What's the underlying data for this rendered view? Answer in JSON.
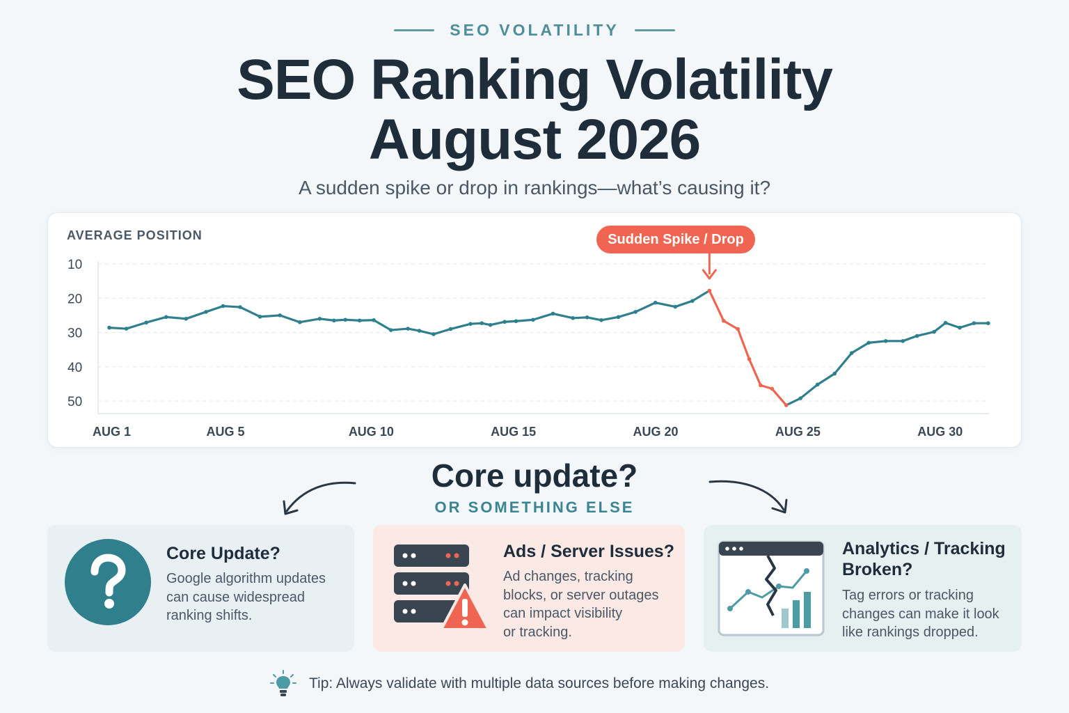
{
  "header": {
    "eyebrow": "SEO VOLATILITY",
    "title_line1": "SEO Ranking Volatility",
    "title_line2": "August 2026",
    "subtitle": "A sudden spike or drop in rankings—what’s causing it?"
  },
  "chart_data": {
    "type": "line",
    "ylabel": "AVERAGE POSITION",
    "y_inverted": false,
    "ylim": [
      10,
      50
    ],
    "y_ticks": [
      10,
      20,
      30,
      40,
      50
    ],
    "x_ticks": [
      {
        "day": 1,
        "label": "AUG 1"
      },
      {
        "day": 5,
        "label": "AUG 5"
      },
      {
        "day": 10,
        "label": "AUG 10"
      },
      {
        "day": 15,
        "label": "AUG 15"
      },
      {
        "day": 20,
        "label": "AUG 20"
      },
      {
        "day": 25,
        "label": "AUG 25"
      },
      {
        "day": 30,
        "label": "AUG 30"
      }
    ],
    "xlim": [
      1,
      31
    ],
    "grid": true,
    "annotation": {
      "label": "Sudden Spike / Drop",
      "day": 20
    },
    "colors": {
      "normal": "#2f7f8d",
      "drop": "#ef6551"
    },
    "highlight_range": [
      20,
      24.2
    ],
    "points": [
      {
        "x": 1,
        "y": 28.6
      },
      {
        "x": 1.6,
        "y": 28.9
      },
      {
        "x": 2.3,
        "y": 27.1
      },
      {
        "x": 3,
        "y": 25.5
      },
      {
        "x": 3.7,
        "y": 26.0
      },
      {
        "x": 4.4,
        "y": 24.0
      },
      {
        "x": 5.0,
        "y": 22.3
      },
      {
        "x": 5.6,
        "y": 22.6
      },
      {
        "x": 6.3,
        "y": 25.4
      },
      {
        "x": 7.0,
        "y": 25.0
      },
      {
        "x": 7.7,
        "y": 27.0
      },
      {
        "x": 8.4,
        "y": 26.0
      },
      {
        "x": 8.9,
        "y": 26.5
      },
      {
        "x": 9.3,
        "y": 26.3
      },
      {
        "x": 9.8,
        "y": 26.5
      },
      {
        "x": 10.3,
        "y": 26.4
      },
      {
        "x": 10.9,
        "y": 29.3
      },
      {
        "x": 11.5,
        "y": 28.9
      },
      {
        "x": 11.9,
        "y": 29.5
      },
      {
        "x": 12.4,
        "y": 30.5
      },
      {
        "x": 13.0,
        "y": 29.0
      },
      {
        "x": 13.7,
        "y": 27.5
      },
      {
        "x": 14.1,
        "y": 27.3
      },
      {
        "x": 14.4,
        "y": 27.8
      },
      {
        "x": 14.9,
        "y": 26.9
      },
      {
        "x": 15.3,
        "y": 26.7
      },
      {
        "x": 15.9,
        "y": 26.3
      },
      {
        "x": 16.6,
        "y": 24.5
      },
      {
        "x": 17.3,
        "y": 25.8
      },
      {
        "x": 17.8,
        "y": 25.6
      },
      {
        "x": 18.3,
        "y": 26.4
      },
      {
        "x": 18.9,
        "y": 25.5
      },
      {
        "x": 19.5,
        "y": 24.0
      },
      {
        "x": 20.2,
        "y": 21.3
      },
      {
        "x": 20.9,
        "y": 22.5
      },
      {
        "x": 21.5,
        "y": 20.8
      },
      {
        "x": 22.1,
        "y": 17.8
      },
      {
        "x": 22.6,
        "y": 26.6
      },
      {
        "x": 23.1,
        "y": 29.0
      },
      {
        "x": 23.5,
        "y": 37.8
      },
      {
        "x": 23.9,
        "y": 45.4
      },
      {
        "x": 24.3,
        "y": 46.4
      },
      {
        "x": 24.8,
        "y": 51.2
      },
      {
        "x": 25.3,
        "y": 49.2
      },
      {
        "x": 25.9,
        "y": 45.2
      },
      {
        "x": 26.5,
        "y": 42.0
      },
      {
        "x": 27.1,
        "y": 36.0
      },
      {
        "x": 27.7,
        "y": 33.0
      },
      {
        "x": 28.3,
        "y": 32.5
      },
      {
        "x": 28.9,
        "y": 32.5
      },
      {
        "x": 29.4,
        "y": 31.0
      },
      {
        "x": 30.0,
        "y": 29.8
      },
      {
        "x": 30.4,
        "y": 27.2
      },
      {
        "x": 30.9,
        "y": 28.6
      },
      {
        "x": 31.4,
        "y": 27.3
      },
      {
        "x": 31.9,
        "y": 27.3
      }
    ]
  },
  "prompt": {
    "question": "Core update?",
    "alt": "OR SOMETHING ELSE"
  },
  "cards": [
    {
      "title": "Core Update?",
      "body": [
        "Google algorithm updates",
        "can cause widespread",
        "ranking shifts."
      ],
      "icon": "question-circle-icon",
      "color": "#2f7f8d"
    },
    {
      "title": "Ads / Server Issues?",
      "body": [
        "Ad changes, tracking",
        "blocks, or server outages",
        "can impact visibility",
        "or tracking."
      ],
      "icon": "server-warning-icon",
      "color": "#ef6551"
    },
    {
      "title_line1": "Analytics / Tracking",
      "title_line2": "Broken?",
      "body": [
        "Tag errors or tracking",
        "changes can make it look",
        "like rankings dropped."
      ],
      "icon": "broken-chart-icon",
      "color": "#4d9ba4"
    }
  ],
  "tip": {
    "text": "Tip: Always validate with multiple data sources before making changes.",
    "icon": "lightbulb-icon"
  }
}
